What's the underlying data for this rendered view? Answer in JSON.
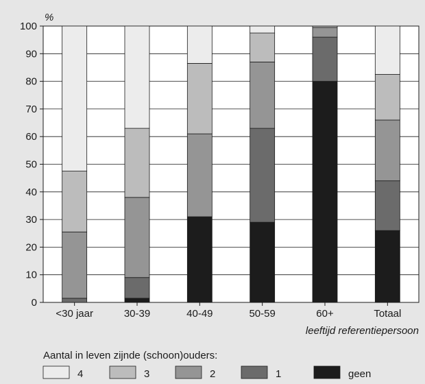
{
  "chart_data": {
    "type": "bar",
    "stacked": true,
    "orientation": "vertical",
    "y_unit_label": "%",
    "xlabel": "leeftijd referentiepersoon",
    "ylabel": "",
    "ylim": [
      0,
      100
    ],
    "yticks": [
      0,
      10,
      20,
      30,
      40,
      50,
      60,
      70,
      80,
      90,
      100
    ],
    "grid": "horizontal",
    "categories": [
      "<30 jaar",
      "30-39",
      "40-49",
      "50-59",
      "60+",
      "Totaal"
    ],
    "series": [
      {
        "name": "geen",
        "color": "#1c1c1c",
        "values": [
          0,
          1.5,
          31,
          29,
          80,
          26
        ]
      },
      {
        "name": "1",
        "color": "#6b6b6b",
        "values": [
          1.5,
          7.5,
          0,
          34,
          16,
          18
        ]
      },
      {
        "name": "2",
        "color": "#959595",
        "values": [
          24,
          29,
          30,
          24,
          3.5,
          22
        ]
      },
      {
        "name": "3",
        "color": "#bcbcbc",
        "values": [
          22,
          25,
          25.5,
          10.5,
          0.5,
          16.5
        ]
      },
      {
        "name": "4",
        "color": "#ececec",
        "values": [
          52.5,
          37,
          13.5,
          2.5,
          0,
          17.5
        ]
      }
    ],
    "legend": {
      "title": "Aantal in leven zijnde (schoon)ouders:",
      "placement": "bottom",
      "order": [
        "4",
        "3",
        "2",
        "1",
        "geen"
      ]
    }
  }
}
